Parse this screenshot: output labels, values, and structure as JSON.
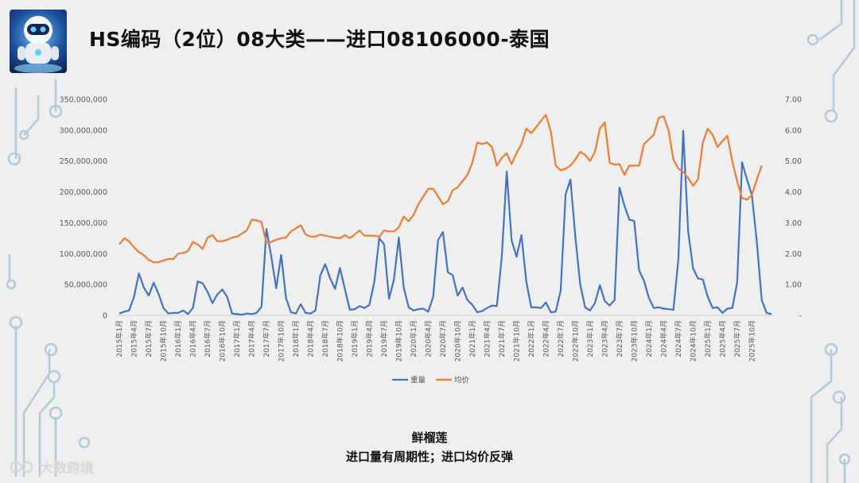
{
  "title": "HS编码（2位）08大类——进口08106000-泰国",
  "caption": {
    "product": "鲜榴莲",
    "note": "进口量有周期性；进口均价反弹"
  },
  "watermark": "大数跨境",
  "colors": {
    "weight": "#4472c4",
    "price": "#ed7d31",
    "axis_text": "#595959",
    "deco": "#a9c4d6"
  },
  "chart_data": {
    "type": "line",
    "title": "",
    "xlabel": "",
    "ylabel": "",
    "y_left": {
      "range": [
        0,
        350000000
      ],
      "ticks": [
        "0",
        "50,000,000",
        "100,000,000",
        "150,000,000",
        "200,000,000",
        "250,000,000",
        "300,000,000",
        "350,000,000"
      ]
    },
    "y_right": {
      "range": [
        0,
        7
      ],
      "ticks": [
        "-",
        "1.00",
        "2.00",
        "3.00",
        "4.00",
        "5.00",
        "6.00",
        "7.00"
      ]
    },
    "grid": false,
    "legend_position": "bottom",
    "x_tick_labels": [
      "2015年1月",
      "2015年4月",
      "2015年7月",
      "2015年10月",
      "2016年1月",
      "2016年4月",
      "2016年7月",
      "2016年10月",
      "2017年1月",
      "2017年4月",
      "2017年7月",
      "2017年10月",
      "2018年1月",
      "2018年4月",
      "2018年7月",
      "2018年10月",
      "2019年1月",
      "2019年4月",
      "2019年7月",
      "2019年10月",
      "2020年1月",
      "2020年4月",
      "2020年7月",
      "2020年10月",
      "2021年1月",
      "2021年4月",
      "2021年7月",
      "2021年10月",
      "2022年1月",
      "2022年4月",
      "2022年7月",
      "2022年10月",
      "2023年1月",
      "2023年4月",
      "2023年7月",
      "2023年10月",
      "2024年1月",
      "2024年4月",
      "2024年7月",
      "2024年10月",
      "2025年1月",
      "2025年4月",
      "2025年7月",
      "2025年10月"
    ],
    "series": [
      {
        "name": "重量",
        "axis": "left",
        "values": [
          3000000,
          6000000,
          8000000,
          30000000,
          68000000,
          45000000,
          32000000,
          53000000,
          35000000,
          12000000,
          3000000,
          4000000,
          4000000,
          8000000,
          2000000,
          12000000,
          55000000,
          52000000,
          38000000,
          20000000,
          34000000,
          42000000,
          30000000,
          3000000,
          2000000,
          1000000,
          3000000,
          2000000,
          4000000,
          14000000,
          140000000,
          95000000,
          44000000,
          98000000,
          28000000,
          5000000,
          3000000,
          18000000,
          4000000,
          3000000,
          8000000,
          65000000,
          83000000,
          60000000,
          43000000,
          77000000,
          43000000,
          9000000,
          10000000,
          15000000,
          12000000,
          17000000,
          54000000,
          125000000,
          115000000,
          27000000,
          58000000,
          126000000,
          45000000,
          13000000,
          8000000,
          10000000,
          11000000,
          6000000,
          30000000,
          122000000,
          135000000,
          70000000,
          65000000,
          32000000,
          45000000,
          25000000,
          17000000,
          5000000,
          7000000,
          12000000,
          16000000,
          15000000,
          95000000,
          233000000,
          122000000,
          95000000,
          130000000,
          55000000,
          13000000,
          13000000,
          12000000,
          21000000,
          5000000,
          6000000,
          40000000,
          196000000,
          220000000,
          127000000,
          50000000,
          13000000,
          8000000,
          20000000,
          49000000,
          23000000,
          16000000,
          25000000,
          207000000,
          178000000,
          155000000,
          153000000,
          73000000,
          56000000,
          28000000,
          12000000,
          13000000,
          11000000,
          10000000,
          9000000,
          91000000,
          299000000,
          136000000,
          76000000,
          60000000,
          58000000,
          30000000,
          12000000,
          13000000,
          4000000,
          11000000,
          12000000,
          53000000,
          248000000,
          220000000,
          195000000,
          120000000,
          25000000,
          4000000,
          2000000
        ]
      },
      {
        "name": "均价",
        "axis": "right",
        "values": [
          2.3,
          2.5,
          2.4,
          2.2,
          2.05,
          1.95,
          1.8,
          1.72,
          1.72,
          1.78,
          1.83,
          1.82,
          2.0,
          2.02,
          2.08,
          2.38,
          2.3,
          2.15,
          2.52,
          2.6,
          2.4,
          2.4,
          2.45,
          2.52,
          2.55,
          2.65,
          2.75,
          3.1,
          3.08,
          3.02,
          2.35,
          2.38,
          2.45,
          2.5,
          2.52,
          2.72,
          2.82,
          2.92,
          2.62,
          2.55,
          2.55,
          2.62,
          2.58,
          2.55,
          2.52,
          2.5,
          2.6,
          2.5,
          2.62,
          2.75,
          2.58,
          2.58,
          2.58,
          2.55,
          2.75,
          2.72,
          2.72,
          2.85,
          3.2,
          3.05,
          3.25,
          3.6,
          3.85,
          4.1,
          4.1,
          3.85,
          3.6,
          3.7,
          4.05,
          4.15,
          4.35,
          4.55,
          4.95,
          5.6,
          5.55,
          5.6,
          5.45,
          4.85,
          5.1,
          5.25,
          4.9,
          5.25,
          5.55,
          6.05,
          5.9,
          6.1,
          6.3,
          6.5,
          5.95,
          4.85,
          4.7,
          4.75,
          4.85,
          5.05,
          5.3,
          5.2,
          5.0,
          5.3,
          6.05,
          6.25,
          4.95,
          4.88,
          4.9,
          4.55,
          4.85,
          4.85,
          4.85,
          5.55,
          5.7,
          5.85,
          6.4,
          6.45,
          6.0,
          5.05,
          4.75,
          4.65,
          4.45,
          4.2,
          4.4,
          5.6,
          6.05,
          5.85,
          5.45,
          5.65,
          5.82,
          5.0,
          4.35,
          3.8,
          3.75,
          3.9,
          4.4,
          4.85
        ]
      }
    ]
  }
}
